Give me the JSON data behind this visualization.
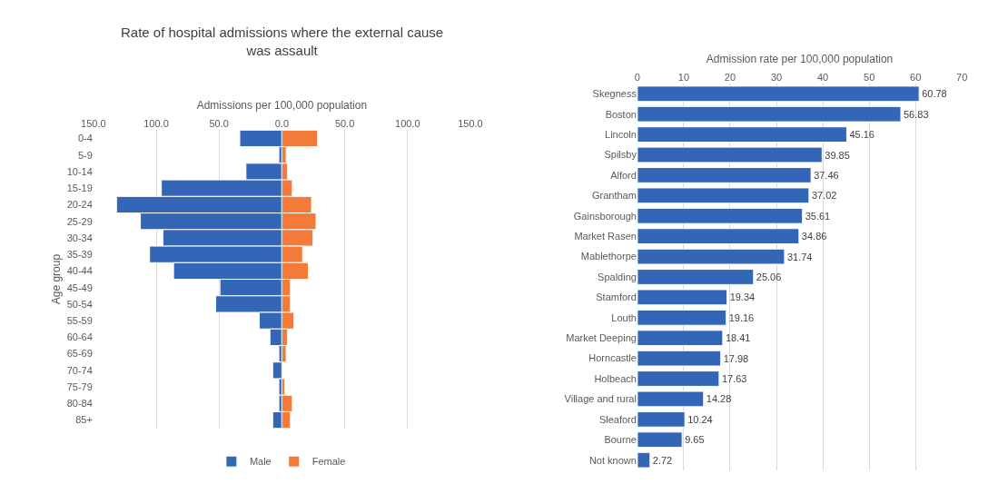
{
  "chart_data": [
    {
      "type": "bar",
      "orientation": "horizontal",
      "stacked": true,
      "title": "Rate of hospital admissions where the external cause was assault",
      "xlabel": "Admissions per 100,000 population",
      "ylabel": "Age group",
      "categories": [
        "0-4",
        "5-9",
        "10-14",
        "15-19",
        "20-24",
        "25-29",
        "30-34",
        "35-39",
        "40-44",
        "45-49",
        "50-54",
        "55-59",
        "60-64",
        "65-69",
        "70-74",
        "75-79",
        "80-84",
        "85+"
      ],
      "series": [
        {
          "name": "Male",
          "color": "#3466b8",
          "values": [
            -33.5,
            -2.4,
            -28.6,
            -95.9,
            -131.6,
            -112.6,
            -94.7,
            -105.3,
            -86.2,
            -49.3,
            -52.7,
            -18.0,
            -9.5,
            -2.4,
            -7.3,
            -2.4,
            -2.4,
            -7.3
          ]
        },
        {
          "name": "Female",
          "color": "#f47a3a",
          "values": [
            28.4,
            3.4,
            4.6,
            8.3,
            23.6,
            27.2,
            24.8,
            16.5,
            21.1,
            6.8,
            6.8,
            9.5,
            4.6,
            3.4,
            null,
            2.4,
            8.3,
            6.8
          ]
        }
      ],
      "xlim": [
        -150,
        150
      ],
      "xticks": [
        {
          "value": -150,
          "label": "150.0"
        },
        {
          "value": -100,
          "label": "100.0"
        },
        {
          "value": -50,
          "label": "50.0"
        },
        {
          "value": 0,
          "label": "0.0"
        },
        {
          "value": 50,
          "label": "50.0"
        },
        {
          "value": 100,
          "label": "100.0"
        },
        {
          "value": 150,
          "label": "150.0"
        }
      ],
      "grid": "x",
      "legend": "bottom"
    },
    {
      "type": "bar",
      "orientation": "horizontal",
      "xlabel": "Admission rate per 100,000 population",
      "categories": [
        "Skegness",
        "Boston",
        "Lincoln",
        "Spilsby",
        "Alford",
        "Grantham",
        "Gainsborough",
        "Market Rasen",
        "Mablethorpe",
        "Spalding",
        "Stamford",
        "Louth",
        "Market Deeping",
        "Horncastle",
        "Holbeach",
        "Village and rural",
        "Sleaford",
        "Bourne",
        "Not known"
      ],
      "values": [
        60.78,
        56.83,
        45.16,
        39.85,
        37.46,
        37.02,
        35.61,
        34.86,
        31.74,
        25.06,
        19.34,
        19.16,
        18.41,
        17.98,
        17.63,
        14.28,
        10.24,
        9.65,
        2.72
      ],
      "color": "#3466b8",
      "xlim": [
        0,
        70
      ],
      "xticks": [
        0,
        10,
        20,
        30,
        40,
        50,
        60,
        70
      ],
      "grid": "x",
      "data_labels": true
    }
  ]
}
